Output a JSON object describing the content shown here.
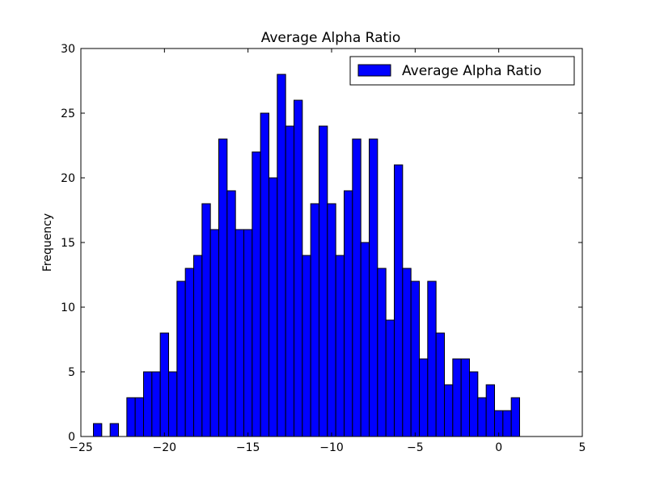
{
  "chart_data": {
    "type": "bar",
    "title": "Average Alpha Ratio",
    "xlabel": "",
    "ylabel": "Frequency",
    "xlim": [
      -25,
      5
    ],
    "ylim": [
      0,
      30
    ],
    "xticks": [
      -25,
      -20,
      -15,
      -10,
      -5,
      0,
      5
    ],
    "xtick_labels": [
      "−25",
      "−20",
      "−15",
      "−10",
      "−5",
      "0",
      "5"
    ],
    "yticks": [
      0,
      5,
      10,
      15,
      20,
      25,
      30
    ],
    "ytick_labels": [
      "0",
      "5",
      "10",
      "15",
      "20",
      "25",
      "30"
    ],
    "grid": false,
    "legend_position": "top-right",
    "bar_color": "#0000ff",
    "edge_color": "#000000",
    "series": [
      {
        "name": "Average Alpha Ratio",
        "bin_width": 0.5,
        "bin_starts": [
          -24.25,
          -23.75,
          -23.25,
          -22.75,
          -22.25,
          -21.75,
          -21.25,
          -20.75,
          -20.25,
          -19.75,
          -19.25,
          -18.75,
          -18.25,
          -17.75,
          -17.25,
          -16.75,
          -16.25,
          -15.75,
          -15.25,
          -14.75,
          -14.25,
          -13.75,
          -13.25,
          -12.75,
          -12.25,
          -11.75,
          -11.25,
          -10.75,
          -10.25,
          -9.75,
          -9.25,
          -8.75,
          -8.25,
          -7.75,
          -7.25,
          -6.75,
          -6.25,
          -5.75,
          -5.25,
          -4.75,
          -4.25,
          -3.75,
          -3.25,
          -2.75,
          -2.25,
          -1.75,
          -1.25,
          -0.75,
          -0.25,
          0.25,
          0.75,
          1.25
        ],
        "values": [
          1,
          0,
          1,
          0,
          3,
          3,
          5,
          5,
          8,
          5,
          12,
          13,
          14,
          18,
          16,
          23,
          19,
          16,
          16,
          22,
          25,
          20,
          28,
          24,
          26,
          14,
          18,
          24,
          18,
          14,
          19,
          23,
          15,
          23,
          13,
          9,
          21,
          13,
          12,
          6,
          12,
          8,
          4,
          6,
          6,
          5,
          3,
          4,
          2,
          2,
          3,
          0
        ]
      }
    ]
  }
}
